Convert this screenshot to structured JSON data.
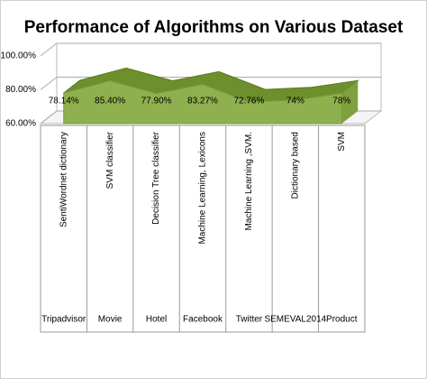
{
  "chart_data": {
    "type": "area3d",
    "title": "Performance  of Algorithms on Various Dataset",
    "categories": [
      "Tripadvisor",
      "Movie",
      "Hotel",
      "Facebook",
      "Twitter",
      "SEMEVAL2014",
      "Product"
    ],
    "algorithms": [
      "SentiWordnet dictionary",
      "SVM classifier",
      "Decision Tree  classifier",
      "Machine Learning, Lexicons",
      "Machine Learning ,SVM.",
      "Dictionary based",
      "SVM"
    ],
    "values": [
      78.14,
      85.4,
      77.9,
      83.27,
      72.76,
      74,
      78
    ],
    "value_labels": [
      "78.14%",
      "85.40%",
      "77.90%",
      "83.27%",
      "72.76%",
      "74%",
      "78%"
    ],
    "color": "#8fb04e",
    "ylim": [
      60,
      100
    ],
    "yticks": [
      {
        "value": 60,
        "label": "60.00%"
      },
      {
        "value": 80,
        "label": "80.00%"
      },
      {
        "value": 100,
        "label": "100.00%"
      }
    ],
    "grid": true
  }
}
